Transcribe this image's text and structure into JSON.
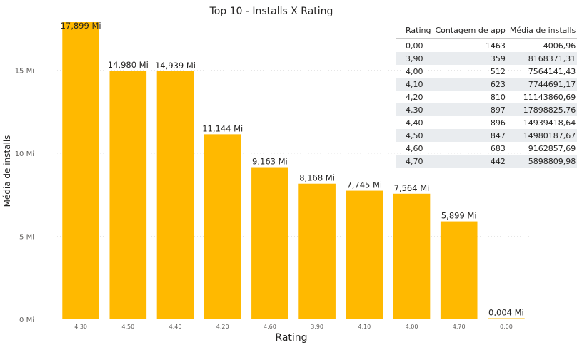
{
  "chart_data": {
    "type": "bar",
    "title": "Top 10 - Installs X Rating",
    "xlabel": "Rating",
    "ylabel": "Média de installs",
    "categories": [
      "4,30",
      "4,50",
      "4,40",
      "4,20",
      "4,60",
      "3,90",
      "4,10",
      "4,00",
      "4,70",
      "0,00"
    ],
    "values": [
      17.899,
      14.98,
      14.939,
      11.144,
      9.163,
      8.168,
      7.745,
      7.564,
      5.899,
      0.004
    ],
    "value_labels": [
      "17,899 Mi",
      "14,980 Mi",
      "14,939 Mi",
      "11,144 Mi",
      "9,163 Mi",
      "8,168 Mi",
      "7,745 Mi",
      "7,564 Mi",
      "5,899 Mi",
      "0,004 Mi"
    ],
    "unit": "Mi",
    "ylim": [
      0,
      17.9
    ],
    "yticks": [
      0,
      5,
      10,
      15
    ],
    "ytick_labels": [
      "0 Mi",
      "5 Mi",
      "10 Mi",
      "15 Mi"
    ],
    "grid": true,
    "bar_color": "#FFB900"
  },
  "table": {
    "columns": [
      "Rating",
      "Contagem de app",
      "Média de installs"
    ],
    "rows": [
      [
        "0,00",
        "1463",
        "4006,96"
      ],
      [
        "3,90",
        "359",
        "8168371,31"
      ],
      [
        "4,00",
        "512",
        "7564141,43"
      ],
      [
        "4,10",
        "623",
        "7744691,17"
      ],
      [
        "4,20",
        "810",
        "11143860,69"
      ],
      [
        "4,30",
        "897",
        "17898825,76"
      ],
      [
        "4,40",
        "896",
        "14939418,64"
      ],
      [
        "4,50",
        "847",
        "14980187,67"
      ],
      [
        "4,60",
        "683",
        "9162857,69"
      ],
      [
        "4,70",
        "442",
        "5898809,98"
      ]
    ]
  }
}
